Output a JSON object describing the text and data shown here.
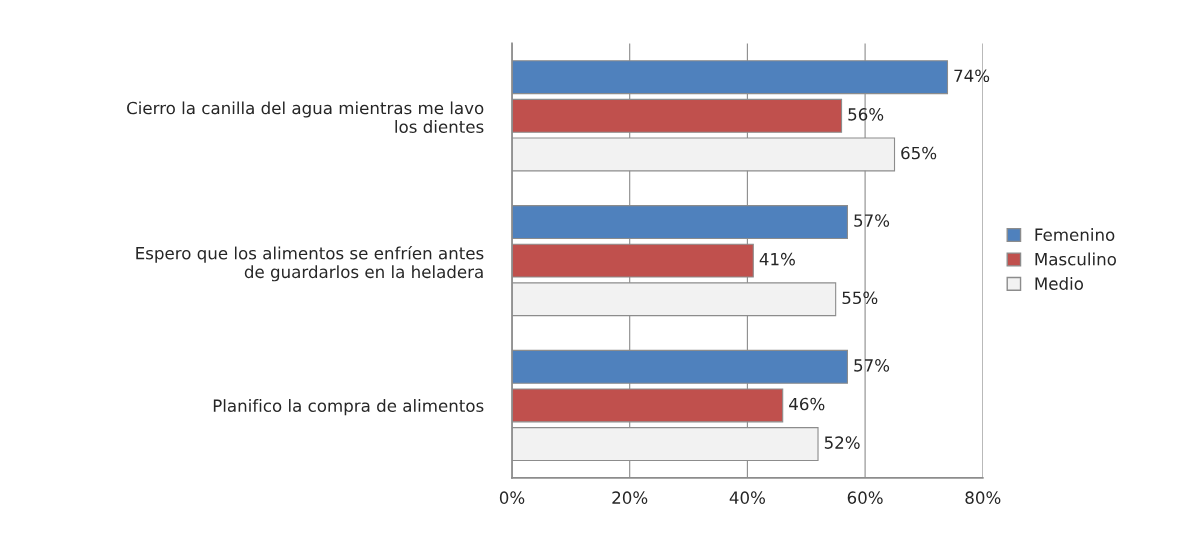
{
  "chart_data": {
    "type": "bar",
    "orientation": "horizontal",
    "categories": [
      "Cierro la canilla del agua mientras me lavo\nlos dientes",
      "Espero que los alimentos se enfríen antes\nde guardarlos en la heladera",
      "Planifico la compra de alimentos"
    ],
    "series": [
      {
        "name": "Femenino",
        "color": "#4f81bd",
        "values": [
          74,
          57,
          57
        ],
        "value_labels": [
          "74%",
          "57%",
          "57%"
        ]
      },
      {
        "name": "Masculino",
        "color": "#c0504d",
        "values": [
          56,
          41,
          46
        ],
        "value_labels": [
          "56%",
          "41%",
          "46%"
        ]
      },
      {
        "name": "Medio",
        "color": "#f2f2f2",
        "values": [
          65,
          55,
          52
        ],
        "value_labels": [
          "65%",
          "55%",
          "52%"
        ]
      }
    ],
    "xlim": [
      0,
      80
    ],
    "xticks": [
      {
        "value": 0,
        "label": "0%"
      },
      {
        "value": 20,
        "label": "20%"
      },
      {
        "value": 40,
        "label": "40%"
      },
      {
        "value": 60,
        "label": "60%"
      },
      {
        "value": 80,
        "label": "80%"
      }
    ],
    "grid": "x",
    "legend": "right"
  }
}
